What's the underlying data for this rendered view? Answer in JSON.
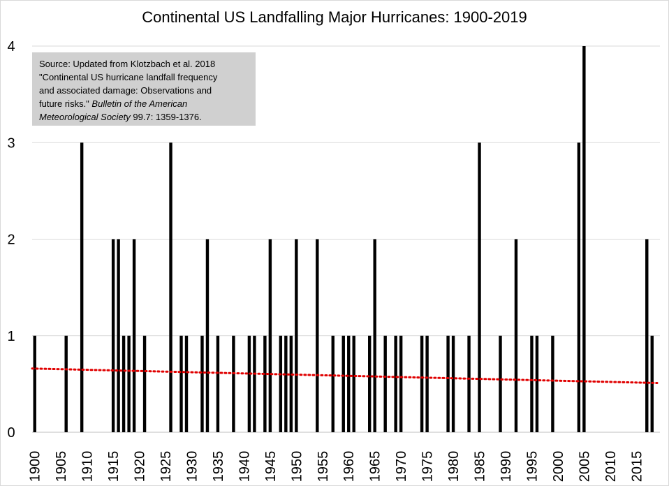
{
  "chart_data": {
    "type": "bar",
    "title": "Continental US Landfalling Major Hurricanes: 1900-2019",
    "xlabel": "",
    "ylabel": "",
    "x_range": [
      1900,
      2019
    ],
    "ylim": [
      0,
      4
    ],
    "y_ticks": [
      "0",
      "1",
      "2",
      "3",
      "4"
    ],
    "x_ticks": [
      "1900",
      "1905",
      "1910",
      "1915",
      "1920",
      "1925",
      "1930",
      "1935",
      "1940",
      "1945",
      "1950",
      "1955",
      "1960",
      "1965",
      "1970",
      "1975",
      "1980",
      "1985",
      "1990",
      "1995",
      "2000",
      "2005",
      "2010",
      "2015"
    ],
    "grid": "horizontal",
    "bar_color": "#000000",
    "trend_color": "#e00000",
    "bars": [
      {
        "year": 1900,
        "value": 1
      },
      {
        "year": 1906,
        "value": 1
      },
      {
        "year": 1909,
        "value": 3
      },
      {
        "year": 1915,
        "value": 2
      },
      {
        "year": 1916,
        "value": 2
      },
      {
        "year": 1917,
        "value": 1
      },
      {
        "year": 1918,
        "value": 1
      },
      {
        "year": 1919,
        "value": 2
      },
      {
        "year": 1921,
        "value": 1
      },
      {
        "year": 1926,
        "value": 3
      },
      {
        "year": 1928,
        "value": 1
      },
      {
        "year": 1929,
        "value": 1
      },
      {
        "year": 1932,
        "value": 1
      },
      {
        "year": 1933,
        "value": 2
      },
      {
        "year": 1935,
        "value": 1
      },
      {
        "year": 1938,
        "value": 1
      },
      {
        "year": 1941,
        "value": 1
      },
      {
        "year": 1942,
        "value": 1
      },
      {
        "year": 1944,
        "value": 1
      },
      {
        "year": 1945,
        "value": 2
      },
      {
        "year": 1947,
        "value": 1
      },
      {
        "year": 1948,
        "value": 1
      },
      {
        "year": 1949,
        "value": 1
      },
      {
        "year": 1950,
        "value": 2
      },
      {
        "year": 1954,
        "value": 2
      },
      {
        "year": 1957,
        "value": 1
      },
      {
        "year": 1959,
        "value": 1
      },
      {
        "year": 1960,
        "value": 1
      },
      {
        "year": 1961,
        "value": 1
      },
      {
        "year": 1964,
        "value": 1
      },
      {
        "year": 1965,
        "value": 2
      },
      {
        "year": 1967,
        "value": 1
      },
      {
        "year": 1969,
        "value": 1
      },
      {
        "year": 1970,
        "value": 1
      },
      {
        "year": 1974,
        "value": 1
      },
      {
        "year": 1975,
        "value": 1
      },
      {
        "year": 1979,
        "value": 1
      },
      {
        "year": 1980,
        "value": 1
      },
      {
        "year": 1983,
        "value": 1
      },
      {
        "year": 1985,
        "value": 3
      },
      {
        "year": 1989,
        "value": 1
      },
      {
        "year": 1992,
        "value": 2
      },
      {
        "year": 1995,
        "value": 1
      },
      {
        "year": 1996,
        "value": 1
      },
      {
        "year": 1999,
        "value": 1
      },
      {
        "year": 2004,
        "value": 3
      },
      {
        "year": 2005,
        "value": 4
      },
      {
        "year": 2017,
        "value": 2
      },
      {
        "year": 2018,
        "value": 1
      }
    ],
    "trendline": {
      "type": "linear",
      "start": {
        "year": 1900,
        "value": 0.66
      },
      "end": {
        "year": 2019,
        "value": 0.51
      }
    }
  },
  "source_box": {
    "line1": "Source: Updated from Klotzbach et al. 2018",
    "line2": "\"Continental US hurricane landfall frequency",
    "line3": "and associated damage: Observations and",
    "line4_plain": "future risks.\" ",
    "line4_italic": "Bulletin of the American",
    "line5_italic": "Meteorological Society",
    "line5_plain": " 99.7: 1359-1376."
  }
}
